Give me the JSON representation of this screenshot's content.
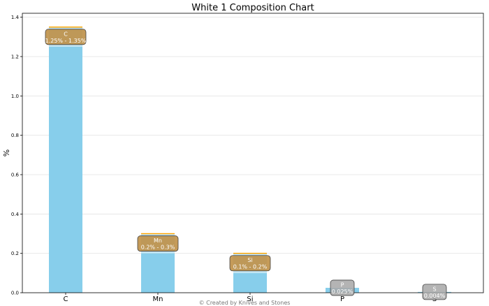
{
  "chart_data": {
    "type": "bar",
    "title": "White 1 Composition Chart",
    "xlabel": "",
    "ylabel": "%",
    "ylim": [
      0,
      1.42
    ],
    "yticks": [
      "0.0",
      "0.2",
      "0.4",
      "0.6",
      "0.8",
      "1.0",
      "1.2",
      "1.4"
    ],
    "grid": "horizontal",
    "categories": [
      "C",
      "Mn",
      "Si",
      "P",
      "S"
    ],
    "ranges": [
      {
        "element": "C",
        "min": 1.25,
        "max": 1.35,
        "label": "1.25% - 1.35%"
      },
      {
        "element": "Mn",
        "min": 0.2,
        "max": 0.3,
        "label": "0.2% - 0.3%"
      },
      {
        "element": "Si",
        "min": 0.1,
        "max": 0.2,
        "label": "0.1% - 0.2%"
      },
      {
        "element": "P",
        "min": 0.025,
        "max": 0.025,
        "label": "0.025%"
      },
      {
        "element": "S",
        "min": 0.004,
        "max": 0.004,
        "label": "0.004%"
      }
    ],
    "colors": {
      "bar": "#87ceeb",
      "range": "#ffa500",
      "label_box": "#aaaaaa"
    }
  },
  "footer": {
    "credit": "© Created by Knives and Stones"
  }
}
